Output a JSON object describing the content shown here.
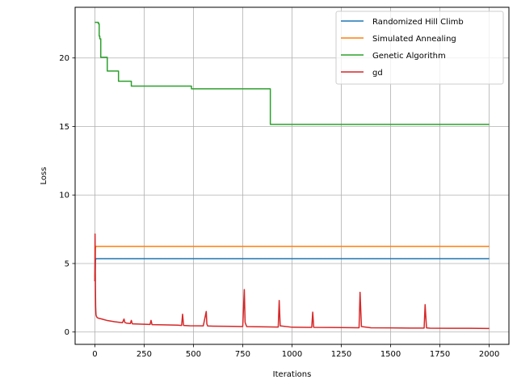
{
  "chart_data": {
    "type": "line",
    "xlabel": "Iterations",
    "ylabel": "Loss",
    "xlim": [
      -100,
      2100
    ],
    "ylim": [
      -0.9,
      23.7
    ],
    "xticks": [
      0,
      250,
      500,
      750,
      1000,
      1250,
      1500,
      1750,
      2000
    ],
    "xtick_labels": [
      "0",
      "250",
      "500",
      "750",
      "1000",
      "1250",
      "1500",
      "1750",
      "2000"
    ],
    "yticks": [
      0,
      5,
      10,
      15,
      20
    ],
    "ytick_labels": [
      "0",
      "5",
      "10",
      "15",
      "20"
    ],
    "grid": true,
    "legend_position": "upper right",
    "series": [
      {
        "name": "Randomized Hill Climb",
        "color": "#1f77b4",
        "step": false,
        "x": [
          0,
          3,
          5,
          2000
        ],
        "y": [
          3.7,
          5.2,
          5.35,
          5.35
        ]
      },
      {
        "name": "Simulated Annealing",
        "color": "#ff7f0e",
        "step": false,
        "x": [
          0,
          3,
          5,
          2000
        ],
        "y": [
          4.0,
          6.1,
          6.25,
          6.25
        ]
      },
      {
        "name": "Genetic Algorithm",
        "color": "#2ca02c",
        "step": true,
        "x": [
          0,
          18,
          22,
          25,
          30,
          63,
          120,
          185,
          490,
          890,
          2000
        ],
        "y": [
          22.6,
          22.5,
          21.6,
          21.4,
          20.05,
          19.05,
          18.3,
          17.95,
          17.75,
          15.15,
          15.15
        ]
      },
      {
        "name": "gd",
        "color": "#d62728",
        "step": false,
        "x": [
          0,
          1,
          2,
          3,
          4,
          5,
          6,
          8,
          12,
          20,
          35,
          60,
          100,
          140,
          148,
          152,
          160,
          180,
          185,
          190,
          220,
          280,
          285,
          290,
          350,
          420,
          440,
          445,
          450,
          480,
          550,
          565,
          568,
          572,
          600,
          700,
          750,
          758,
          762,
          770,
          800,
          900,
          930,
          935,
          940,
          1000,
          1100,
          1105,
          1110,
          1200,
          1300,
          1340,
          1345,
          1352,
          1400,
          1500,
          1600,
          1670,
          1675,
          1682,
          1700,
          1800,
          1900,
          2000
        ],
        "y": [
          3.7,
          7.15,
          5.4,
          3.2,
          1.9,
          1.5,
          1.25,
          1.15,
          1.05,
          1.0,
          0.95,
          0.85,
          0.75,
          0.68,
          0.95,
          0.7,
          0.65,
          0.62,
          0.85,
          0.6,
          0.58,
          0.55,
          0.85,
          0.54,
          0.52,
          0.5,
          0.48,
          1.3,
          0.48,
          0.46,
          0.45,
          1.5,
          0.6,
          0.44,
          0.43,
          0.41,
          0.4,
          3.1,
          0.7,
          0.4,
          0.39,
          0.37,
          0.36,
          2.3,
          0.45,
          0.35,
          0.34,
          1.45,
          0.34,
          0.33,
          0.32,
          0.31,
          2.9,
          0.4,
          0.31,
          0.3,
          0.29,
          0.29,
          2.0,
          0.3,
          0.28,
          0.27,
          0.27,
          0.26
        ]
      }
    ]
  }
}
